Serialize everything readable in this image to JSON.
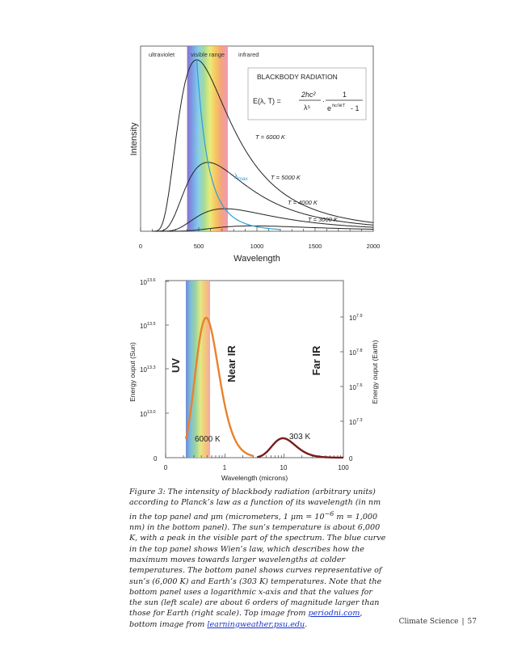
{
  "chart_data": [
    {
      "type": "line",
      "title": "BLACKBODY RADIATION",
      "formula": {
        "lhs": "E(λ, T) =",
        "numerator": "2hc²",
        "denominator": "λ⁵",
        "dot": "·",
        "one": "1",
        "exp_base": "e",
        "exp_power": "hc/λkT",
        "minus_one": "- 1"
      },
      "xlabel": "Wavelength",
      "ylabel": "Intensity",
      "xlim": [
        0,
        2000
      ],
      "x_ticks": [
        "0",
        "500",
        "1000",
        "1500",
        "2000"
      ],
      "region_labels": [
        "ultraviolet",
        "visible range",
        "infrared"
      ],
      "visible_band": [
        400,
        750
      ],
      "series": [
        {
          "name": "T = 6000 K",
          "temperature": 6000,
          "peak_x": 483,
          "relative_peak": 1.0
        },
        {
          "name": "T = 5000 K",
          "temperature": 5000,
          "peak_x": 580,
          "relative_peak": 0.4
        },
        {
          "name": "T = 4000 K",
          "temperature": 4000,
          "peak_x": 725,
          "relative_peak": 0.13
        },
        {
          "name": "T = 3000 K",
          "temperature": 3000,
          "peak_x": 966,
          "relative_peak": 0.03
        }
      ],
      "wien_label": "λmax",
      "wien_label_main": "λ",
      "wien_label_sub": "max",
      "colors": {
        "curves": "#222222",
        "wien": "#2e9fd4"
      }
    },
    {
      "type": "line",
      "xlabel": "Wavelength (microns)",
      "ylabel_left": "Energy ouput (Sun)",
      "ylabel_right": "Energy ouput (Earth)",
      "x_scale": "log",
      "xlim": [
        0.1,
        100
      ],
      "x_ticks": [
        "0",
        "1",
        "10",
        "100"
      ],
      "left_ticks": [
        {
          "base": "10",
          "exp": "13.6"
        },
        {
          "base": "10",
          "exp": "13.5"
        },
        {
          "base": "10",
          "exp": "13.3"
        },
        {
          "base": "10",
          "exp": "13.0"
        },
        {
          "base": "0",
          "exp": ""
        }
      ],
      "right_ticks": [
        {
          "base": "10",
          "exp": "7.9"
        },
        {
          "base": "10",
          "exp": "7.8"
        },
        {
          "base": "10",
          "exp": "7.6"
        },
        {
          "base": "10",
          "exp": "7.3"
        },
        {
          "base": "0",
          "exp": ""
        }
      ],
      "region_labels": [
        "UV",
        "Near IR",
        "Far IR"
      ],
      "series": [
        {
          "name": "6000 K",
          "peak_x": 0.5,
          "color": "#e8822d"
        },
        {
          "name": "303 K",
          "peak_x": 10,
          "color": "#7a1c1c"
        }
      ]
    }
  ],
  "caption": {
    "part1": "Figure 3: The intensity of blackbody radiation (arbitrary units) according to Planck’s law as a function of its wavelength (in nm in the top panel and μm (micrometers, 1 μm = 10",
    "sup": "−6",
    "part2": " m = 1,000 nm) in the bottom panel). The sun’s temperature is about 6,000 K, with a peak in the visible part of the spectrum. The blue curve in the top panel shows Wien’s law, which describes how the maximum moves towards larger wavelengths at colder temperatures. The bottom panel shows curves representative of sun’s (6,000 K) and Earth’s (303 K) temperatures. Note that the bottom panel uses a logarithmic x-axis and that the values for the sun (left scale) are about 6 orders of magnitude larger than those for Earth (right scale). Top image from ",
    "link1": "periodni.com",
    "part3": ", bottom image from ",
    "link2": "learningweather.psu.edu",
    "part4": "."
  },
  "footer": {
    "book": "Climate Science",
    "separator": "|",
    "page": "57"
  }
}
